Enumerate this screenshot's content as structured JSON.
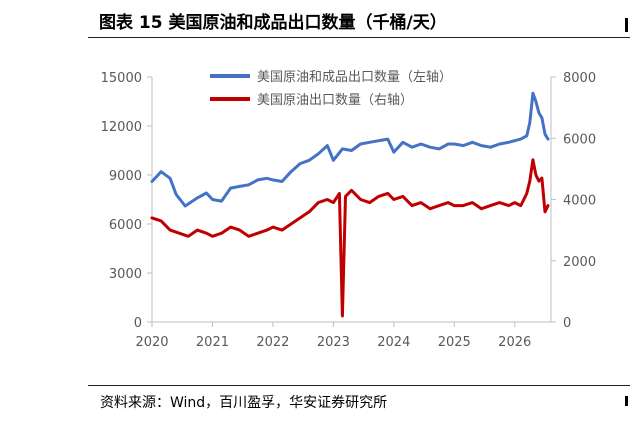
{
  "figure": {
    "title": "图表 15 美国原油和成品出口数量（千桶/天）",
    "source": "资料来源：Wind，百川盈孚，华安证券研究所"
  },
  "chart_data": {
    "type": "line",
    "title": "",
    "xlabel": "",
    "ylabel": "",
    "x_ticks": [
      "2020",
      "2021",
      "2022",
      "2023",
      "2024",
      "2025",
      "2026"
    ],
    "xlim": [
      2020,
      2026.6
    ],
    "y_left": {
      "ticks": [
        "0",
        "3000",
        "6000",
        "9000",
        "12000",
        "15000"
      ],
      "ylim": [
        0,
        15000
      ]
    },
    "y_right": {
      "ticks": [
        "0",
        "2000",
        "4000",
        "6000",
        "8000"
      ],
      "ylim": [
        0,
        8000
      ]
    },
    "legend_position": "top",
    "grid": false,
    "series": [
      {
        "name": "美国原油和成品出口数量（左轴）",
        "axis": "left",
        "color": "#4472C4",
        "x": [
          2020.0,
          2020.15,
          2020.3,
          2020.4,
          2020.55,
          2020.75,
          2020.9,
          2021.0,
          2021.15,
          2021.3,
          2021.45,
          2021.6,
          2021.75,
          2021.9,
          2022.0,
          2022.15,
          2022.3,
          2022.45,
          2022.6,
          2022.75,
          2022.9,
          2023.0,
          2023.15,
          2023.3,
          2023.45,
          2023.6,
          2023.75,
          2023.9,
          2024.0,
          2024.15,
          2024.3,
          2024.45,
          2024.6,
          2024.75,
          2024.9,
          2025.0,
          2025.15,
          2025.3,
          2025.45,
          2025.6,
          2025.75,
          2025.9,
          2026.0,
          2026.1,
          2026.2,
          2026.25,
          2026.3,
          2026.35,
          2026.4,
          2026.45,
          2026.5,
          2026.55
        ],
        "y": [
          8600,
          9200,
          8800,
          7800,
          7100,
          7600,
          7900,
          7500,
          7400,
          8200,
          8300,
          8400,
          8700,
          8800,
          8700,
          8600,
          9200,
          9700,
          9900,
          10300,
          10800,
          9900,
          10600,
          10500,
          10900,
          11000,
          11100,
          11200,
          10400,
          11000,
          10700,
          10900,
          10700,
          10600,
          10900,
          10900,
          10800,
          11000,
          10800,
          10700,
          10900,
          11000,
          11100,
          11200,
          11400,
          12200,
          14000,
          13500,
          12800,
          12500,
          11500,
          11200
        ]
      },
      {
        "name": "美国原油出口数量（右轴）",
        "axis": "right",
        "color": "#C00000",
        "x": [
          2020.0,
          2020.15,
          2020.3,
          2020.45,
          2020.6,
          2020.75,
          2020.9,
          2021.0,
          2021.15,
          2021.3,
          2021.45,
          2021.6,
          2021.75,
          2021.9,
          2022.0,
          2022.15,
          2022.3,
          2022.45,
          2022.6,
          2022.75,
          2022.9,
          2023.0,
          2023.1,
          2023.15,
          2023.2,
          2023.3,
          2023.45,
          2023.6,
          2023.75,
          2023.9,
          2024.0,
          2024.15,
          2024.3,
          2024.45,
          2024.6,
          2024.75,
          2024.9,
          2025.0,
          2025.15,
          2025.3,
          2025.45,
          2025.6,
          2025.75,
          2025.9,
          2026.0,
          2026.1,
          2026.2,
          2026.25,
          2026.3,
          2026.35,
          2026.4,
          2026.45,
          2026.5,
          2026.55
        ],
        "y": [
          3400,
          3300,
          3000,
          2900,
          2800,
          3000,
          2900,
          2800,
          2900,
          3100,
          3000,
          2800,
          2900,
          3000,
          3100,
          3000,
          3200,
          3400,
          3600,
          3900,
          4000,
          3900,
          4200,
          200,
          4100,
          4300,
          4000,
          3900,
          4100,
          4200,
          4000,
          4100,
          3800,
          3900,
          3700,
          3800,
          3900,
          3800,
          3800,
          3900,
          3700,
          3800,
          3900,
          3800,
          3900,
          3800,
          4200,
          4600,
          5300,
          4800,
          4600,
          4700,
          3600,
          3800
        ]
      }
    ]
  }
}
